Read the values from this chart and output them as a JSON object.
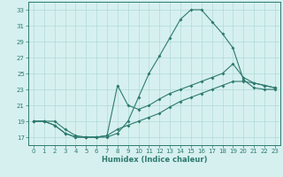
{
  "xlabel": "Humidex (Indice chaleur)",
  "line_color": "#2d7a6e",
  "bg_color": "#d6f0ef",
  "grid_color": "#b0dbd8",
  "ylim": [
    16,
    34
  ],
  "xlim": [
    -0.5,
    23.5
  ],
  "yticks": [
    17,
    19,
    21,
    23,
    25,
    27,
    29,
    31,
    33
  ],
  "xticks": [
    0,
    1,
    2,
    3,
    4,
    5,
    6,
    7,
    8,
    9,
    10,
    11,
    12,
    13,
    14,
    15,
    16,
    17,
    18,
    19,
    20,
    21,
    22,
    23
  ],
  "line1_x": [
    0,
    1,
    2,
    3,
    4,
    5,
    6,
    7,
    8,
    9,
    10,
    11,
    12,
    13,
    14,
    15,
    16,
    17,
    18,
    19,
    20,
    21,
    22,
    23
  ],
  "line1_y": [
    19,
    19,
    19,
    18,
    17.2,
    17,
    17,
    17,
    17.5,
    19,
    22,
    25,
    27.2,
    29.5,
    31.8,
    33,
    33,
    31.5,
    30,
    28.2,
    24.2,
    23.2,
    23,
    23
  ],
  "line2_x": [
    0,
    1,
    2,
    3,
    4,
    5,
    6,
    7,
    8,
    9,
    10,
    11,
    12,
    13,
    14,
    15,
    16,
    17,
    18,
    19,
    20,
    21,
    22,
    23
  ],
  "line2_y": [
    19,
    19,
    18.5,
    17.5,
    17,
    17,
    17,
    17.2,
    23.5,
    21,
    20.5,
    21,
    21.8,
    22.5,
    23,
    23.5,
    24,
    24.5,
    25,
    26.2,
    24.5,
    23.8,
    23.5,
    23.2
  ],
  "line3_x": [
    0,
    1,
    2,
    3,
    4,
    5,
    6,
    7,
    8,
    9,
    10,
    11,
    12,
    13,
    14,
    15,
    16,
    17,
    18,
    19,
    20,
    21,
    22,
    23
  ],
  "line3_y": [
    19,
    19,
    18.5,
    17.5,
    17,
    17,
    17,
    17.2,
    18,
    18.5,
    19,
    19.5,
    20,
    20.8,
    21.5,
    22,
    22.5,
    23,
    23.5,
    24,
    24,
    23.8,
    23.5,
    23.2
  ]
}
